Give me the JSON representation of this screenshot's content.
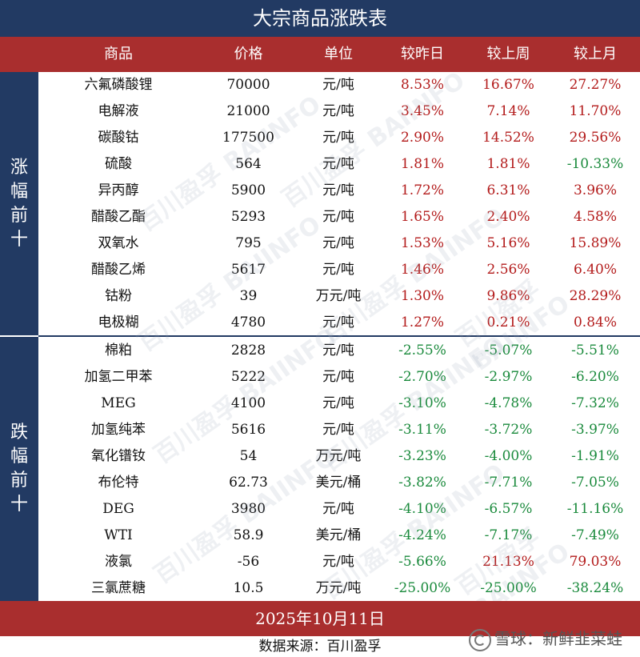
{
  "title": "大宗商品涨跌表",
  "headers": [
    "商品",
    "价格",
    "单位",
    "较昨日",
    "较上周",
    "较上月"
  ],
  "groups": {
    "up_label": "涨幅前十",
    "down_label": "跌幅前十"
  },
  "rows": [
    {
      "name": "六氟磷酸锂",
      "price": "70000",
      "unit": "元/吨",
      "day": "8.53%",
      "week": "16.67%",
      "month": "27.27%"
    },
    {
      "name": "电解液",
      "price": "21000",
      "unit": "元/吨",
      "day": "3.45%",
      "week": "7.14%",
      "month": "11.70%"
    },
    {
      "name": "碳酸钴",
      "price": "177500",
      "unit": "元/吨",
      "day": "2.90%",
      "week": "14.52%",
      "month": "29.56%"
    },
    {
      "name": "硫酸",
      "price": "564",
      "unit": "元/吨",
      "day": "1.81%",
      "week": "1.81%",
      "month": "-10.33%"
    },
    {
      "name": "异丙醇",
      "price": "5900",
      "unit": "元/吨",
      "day": "1.72%",
      "week": "6.31%",
      "month": "3.96%"
    },
    {
      "name": "醋酸乙酯",
      "price": "5293",
      "unit": "元/吨",
      "day": "1.65%",
      "week": "2.40%",
      "month": "4.58%"
    },
    {
      "name": "双氧水",
      "price": "795",
      "unit": "元/吨",
      "day": "1.53%",
      "week": "5.16%",
      "month": "15.89%"
    },
    {
      "name": "醋酸乙烯",
      "price": "5617",
      "unit": "元/吨",
      "day": "1.46%",
      "week": "2.56%",
      "month": "6.40%"
    },
    {
      "name": "钴粉",
      "price": "39",
      "unit": "万元/吨",
      "day": "1.30%",
      "week": "9.86%",
      "month": "28.29%"
    },
    {
      "name": "电极糊",
      "price": "4780",
      "unit": "元/吨",
      "day": "1.27%",
      "week": "0.21%",
      "month": "0.84%"
    },
    {
      "name": "棉粕",
      "price": "2828",
      "unit": "元/吨",
      "day": "-2.55%",
      "week": "-5.07%",
      "month": "-5.51%"
    },
    {
      "name": "加氢二甲苯",
      "price": "5222",
      "unit": "元/吨",
      "day": "-2.70%",
      "week": "-2.97%",
      "month": "-6.20%"
    },
    {
      "name": "MEG",
      "price": "4100",
      "unit": "元/吨",
      "day": "-3.10%",
      "week": "-4.78%",
      "month": "-7.32%"
    },
    {
      "name": "加氢纯苯",
      "price": "5616",
      "unit": "元/吨",
      "day": "-3.11%",
      "week": "-3.72%",
      "month": "-3.97%"
    },
    {
      "name": "氧化镨钕",
      "price": "54",
      "unit": "万元/吨",
      "day": "-3.23%",
      "week": "-4.00%",
      "month": "-1.91%"
    },
    {
      "name": "布伦特",
      "price": "62.73",
      "unit": "美元/桶",
      "day": "-3.82%",
      "week": "-7.71%",
      "month": "-7.05%"
    },
    {
      "name": "DEG",
      "price": "3980",
      "unit": "元/吨",
      "day": "-4.10%",
      "week": "-6.57%",
      "month": "-11.16%"
    },
    {
      "name": "WTI",
      "price": "58.9",
      "unit": "美元/桶",
      "day": "-4.24%",
      "week": "-7.17%",
      "month": "-7.49%"
    },
    {
      "name": "液氯",
      "price": "-56",
      "unit": "元/吨",
      "day": "-5.66%",
      "week": "21.13%",
      "month": "79.03%"
    },
    {
      "name": "三氯蔗糖",
      "price": "10.5",
      "unit": "万元/吨",
      "day": "-25.00%",
      "week": "-25.00%",
      "month": "-38.24%"
    }
  ],
  "date": "2025年10月11日",
  "source": "数据来源：百川盈孚",
  "brand": "雪球：新鲜韭菜蛙",
  "watermark": {
    "cn": "百川盈孚",
    "en": "BAIINFO"
  },
  "colors": {
    "navy": "#223a63",
    "red": "#a92e2e",
    "up": "#b31b1b",
    "down": "#1a8a3c"
  }
}
